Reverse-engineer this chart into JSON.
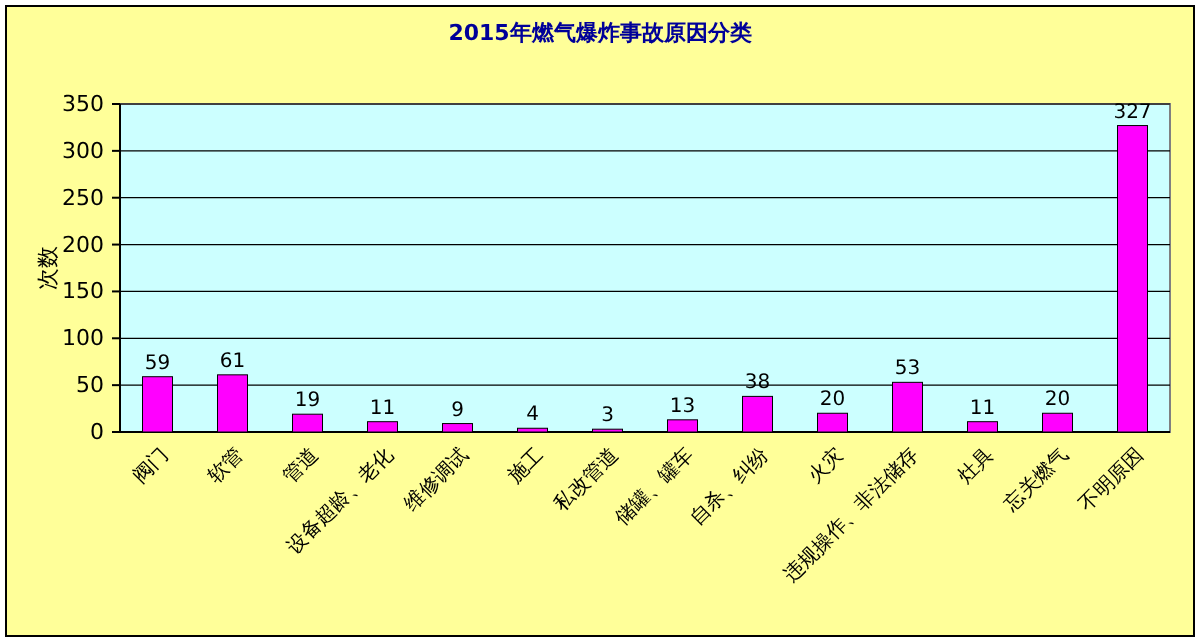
{
  "chart_data": {
    "type": "bar",
    "title": "2015年燃气爆炸事故原因分类",
    "ylabel": "次数",
    "categories": [
      "阀门",
      "软管",
      "管道",
      "设备超龄、老化",
      "维修调试",
      "施工",
      "私改管道",
      "储罐、罐车",
      "自杀、纠纷",
      "火灾",
      "违规操作、非法储存",
      "灶具",
      "忘关燃气",
      "不明原因"
    ],
    "values": [
      59,
      61,
      19,
      11,
      9,
      4,
      3,
      13,
      38,
      20,
      53,
      11,
      20,
      327
    ],
    "color": "#ff00ff",
    "ylim": [
      0,
      350
    ],
    "yticks": [
      0,
      50,
      100,
      150,
      200,
      250,
      300,
      350
    ],
    "grid": "y",
    "data_labels": true
  }
}
